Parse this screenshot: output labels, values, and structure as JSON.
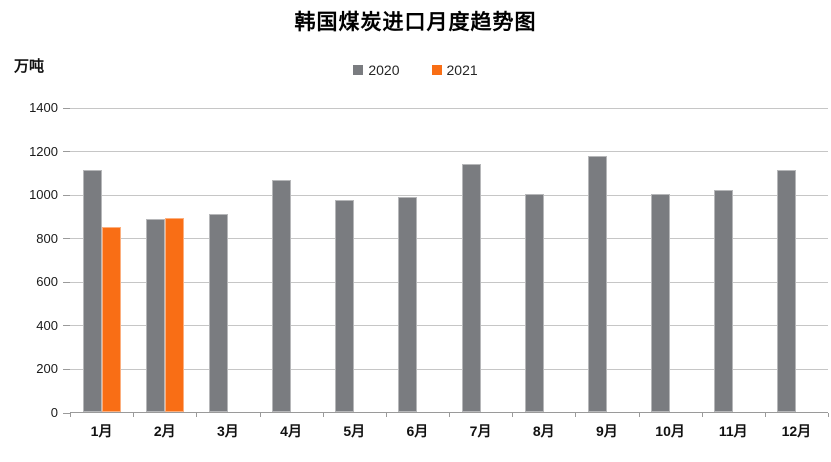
{
  "chart_data": {
    "type": "bar",
    "title": "韩国煤炭进口月度趋势图",
    "ylabel": "万吨",
    "xlabel": "",
    "categories": [
      "1月",
      "2月",
      "3月",
      "4月",
      "5月",
      "6月",
      "7月",
      "8月",
      "9月",
      "10月",
      "11月",
      "12月"
    ],
    "series": [
      {
        "name": "2020",
        "color": "#7a7c80",
        "values": [
          1110,
          885,
          910,
          1065,
          975,
          985,
          1140,
          1000,
          1175,
          1000,
          1020,
          1110
        ]
      },
      {
        "name": "2021",
        "color": "#f96e15",
        "values": [
          850,
          890,
          null,
          null,
          null,
          null,
          null,
          null,
          null,
          null,
          null,
          null
        ]
      }
    ],
    "ylim": [
      0,
      1400
    ],
    "ytick_interval": 200,
    "grid": true,
    "legend_position": "top-center"
  }
}
